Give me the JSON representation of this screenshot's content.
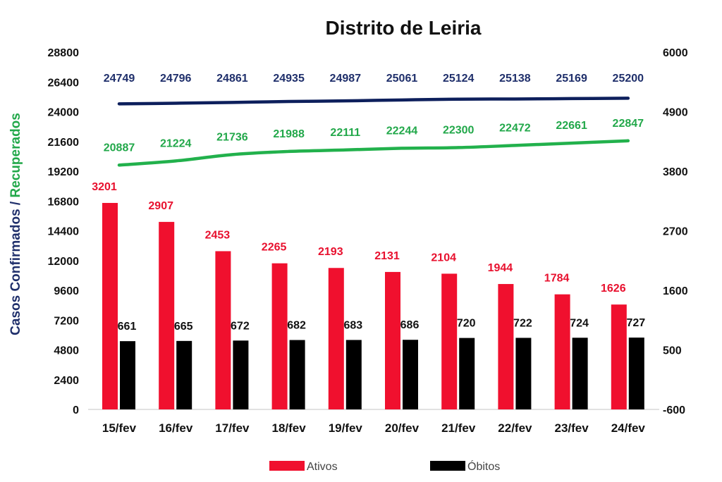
{
  "chart_data": {
    "type": "bar",
    "title": "Distrito de Leiria",
    "categories": [
      "15/fev",
      "16/fev",
      "17/fev",
      "18/fev",
      "19/fev",
      "20/fev",
      "21/fev",
      "22/fev",
      "23/fev",
      "24/fev"
    ],
    "ylabel_part1": "Casos Confirmados",
    "ylabel_separator": " / ",
    "ylabel_part2": "Recuperados",
    "ylim": [
      0,
      28800
    ],
    "yticks": [
      "0",
      "2400",
      "4800",
      "7200",
      "9600",
      "12000",
      "14400",
      "16800",
      "19200",
      "21600",
      "24000",
      "26400",
      "28800"
    ],
    "y2lim": [
      -600,
      6000
    ],
    "y2ticks": [
      "-600",
      "500",
      "1600",
      "2700",
      "3800",
      "4900",
      "6000"
    ],
    "grid": false,
    "legend_position": "bottom",
    "colors": {
      "ativos": "#f0102e",
      "obitos": "#000000",
      "confirmados": "#0d1f5c",
      "recuperados": "#22b14c",
      "ativos_label": "#e8102e",
      "confirmados_label": "#1f2f6b",
      "recuperados_label": "#22a84a",
      "ylabel_part1": "#1f2f6b",
      "ylabel_part2": "#22a84a"
    },
    "series": [
      {
        "key": "confirmados",
        "type": "line",
        "axis": "left",
        "values": [
          24749,
          24796,
          24861,
          24935,
          24987,
          25061,
          25124,
          25138,
          25169,
          25200
        ]
      },
      {
        "key": "recuperados",
        "type": "line",
        "axis": "left",
        "values": [
          20887,
          21224,
          21736,
          21988,
          22111,
          22244,
          22300,
          22472,
          22661,
          22847
        ]
      },
      {
        "key": "ativos",
        "name": "Ativos",
        "type": "bar",
        "axis": "left",
        "values": [
          3201,
          2907,
          2453,
          2265,
          2193,
          2131,
          2104,
          1944,
          1784,
          1626
        ]
      },
      {
        "key": "obitos",
        "name": "Óbitos",
        "type": "bar",
        "axis": "right",
        "values": [
          661,
          665,
          672,
          682,
          683,
          686,
          720,
          722,
          724,
          727
        ]
      }
    ]
  }
}
